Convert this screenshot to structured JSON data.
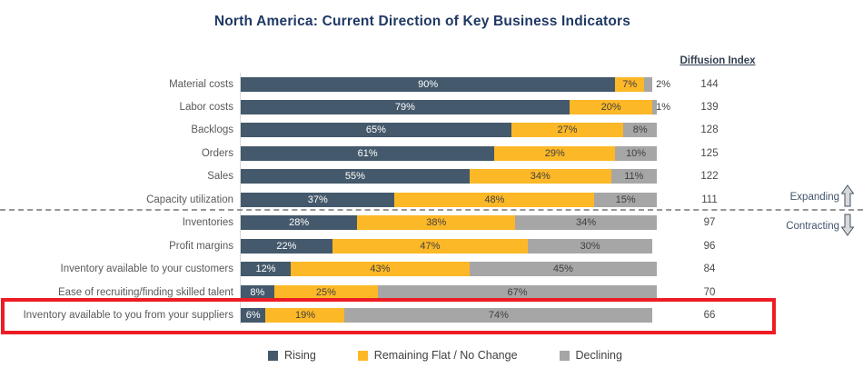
{
  "title": "North America: Current Direction of Key Business Indicators",
  "diffusion_header": "Diffusion Index",
  "annotations": {
    "expanding": "Expanding",
    "contracting": "Contracting"
  },
  "colors": {
    "rising": "#44596B",
    "flat": "#FDB827",
    "declining": "#A6A6A6",
    "highlight_box": "#ED1C24",
    "title": "#1F3864"
  },
  "legend": [
    {
      "key": "rising",
      "label": "Rising",
      "color": "#44596B"
    },
    {
      "key": "flat",
      "label": "Remaining Flat / No Change",
      "color": "#FDB827"
    },
    {
      "key": "declining",
      "label": "Declining",
      "color": "#A6A6A6"
    }
  ],
  "chart_data": {
    "type": "bar",
    "orientation": "horizontal",
    "stacked": true,
    "unit": "%",
    "xlim": [
      0,
      100
    ],
    "grid": false,
    "legend_position": "bottom",
    "categories": [
      "Material costs",
      "Labor costs",
      "Backlogs",
      "Orders",
      "Sales",
      "Capacity utilization",
      "Inventories",
      "Profit margins",
      "Inventory available to your customers",
      "Ease of recruiting/finding skilled talent",
      "Inventory available to you from your suppliers"
    ],
    "series": [
      {
        "name": "Rising",
        "values": [
          90,
          79,
          65,
          61,
          55,
          37,
          28,
          22,
          12,
          8,
          6
        ]
      },
      {
        "name": "Remaining Flat / No Change",
        "values": [
          7,
          20,
          27,
          29,
          34,
          48,
          38,
          47,
          43,
          25,
          19
        ]
      },
      {
        "name": "Declining",
        "values": [
          2,
          1,
          8,
          10,
          11,
          15,
          34,
          30,
          45,
          67,
          74
        ]
      }
    ],
    "diffusion_index": [
      144,
      139,
      128,
      125,
      122,
      111,
      97,
      96,
      84,
      70,
      66
    ],
    "separator_after_row_index": 5,
    "expanding_rows": "above separator",
    "contracting_rows": "below separator",
    "highlighted_row_index": 10
  }
}
